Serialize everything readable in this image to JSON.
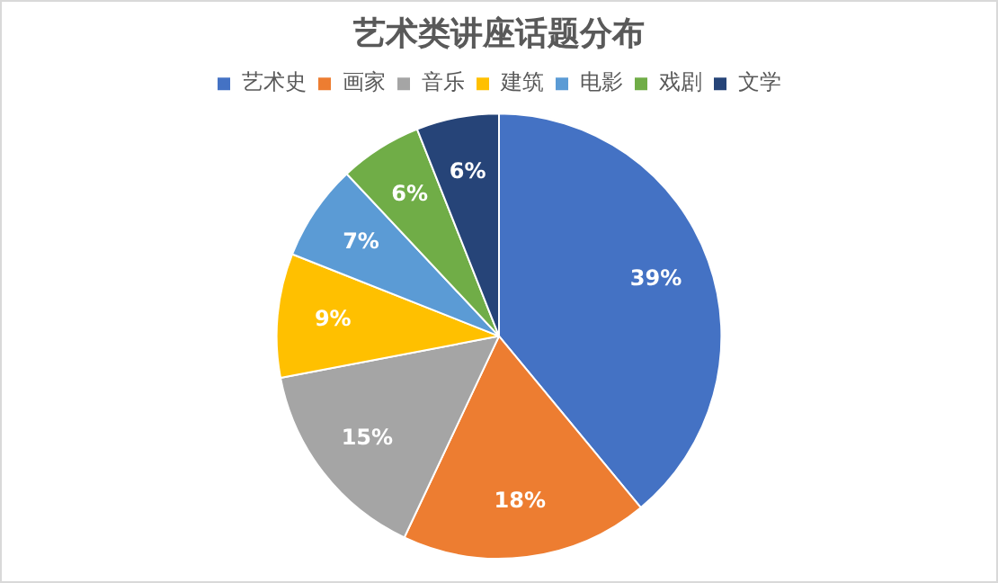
{
  "chart_data": {
    "type": "pie",
    "title": "艺术类讲座话题分布",
    "categories": [
      "艺术史",
      "画家",
      "音乐",
      "建筑",
      "电影",
      "戏剧",
      "文学"
    ],
    "values": [
      39,
      18,
      15,
      9,
      7,
      6,
      6
    ],
    "colors": [
      "#4472c4",
      "#ed7d31",
      "#a5a5a5",
      "#ffc000",
      "#5b9bd5",
      "#70ad47",
      "#264478"
    ],
    "value_labels": [
      "39%",
      "18%",
      "15%",
      "9%",
      "7%",
      "6%",
      "6%"
    ],
    "legend": "top"
  }
}
